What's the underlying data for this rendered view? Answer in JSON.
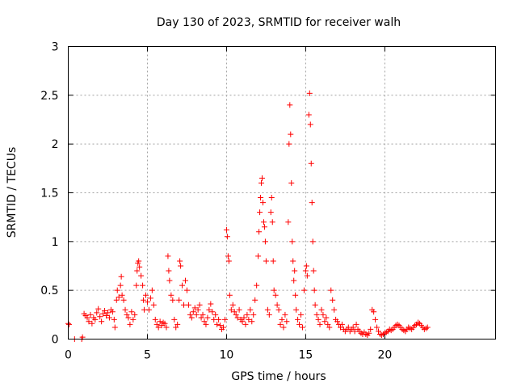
{
  "chart_data": {
    "type": "scatter",
    "title": "Day 130 of 2023, SRMTID for receiver walh",
    "xlabel": "GPS time / hours",
    "ylabel": "SRMTID / TECUs",
    "xlim": [
      0,
      27
    ],
    "ylim": [
      0,
      3
    ],
    "xticks": [
      0,
      5,
      10,
      15,
      20
    ],
    "xtick_labels": [
      "0",
      "5",
      "10",
      "15",
      "20"
    ],
    "yticks": [
      0,
      0.5,
      1,
      1.5,
      2,
      2.5,
      3
    ],
    "ytick_labels": [
      "0",
      "0.5",
      "1",
      "1.5",
      "2",
      "2.5",
      "3"
    ],
    "grid": true,
    "marker": "plus",
    "color": "#ff0000",
    "series": [
      {
        "name": "SRMTID",
        "points": [
          [
            0.0,
            0.16
          ],
          [
            0.05,
            0.15
          ],
          [
            0.4,
            0.0
          ],
          [
            0.85,
            0.0
          ],
          [
            0.9,
            0.02
          ],
          [
            1.0,
            0.26
          ],
          [
            1.1,
            0.24
          ],
          [
            1.2,
            0.22
          ],
          [
            1.3,
            0.18
          ],
          [
            1.4,
            0.25
          ],
          [
            1.5,
            0.16
          ],
          [
            1.6,
            0.22
          ],
          [
            1.7,
            0.2
          ],
          [
            1.8,
            0.27
          ],
          [
            1.9,
            0.31
          ],
          [
            2.0,
            0.23
          ],
          [
            2.1,
            0.18
          ],
          [
            2.2,
            0.26
          ],
          [
            2.3,
            0.29
          ],
          [
            2.4,
            0.24
          ],
          [
            2.5,
            0.27
          ],
          [
            2.6,
            0.22
          ],
          [
            2.7,
            0.3
          ],
          [
            2.8,
            0.28
          ],
          [
            2.9,
            0.2
          ],
          [
            2.95,
            0.12
          ],
          [
            3.05,
            0.4
          ],
          [
            3.1,
            0.5
          ],
          [
            3.2,
            0.43
          ],
          [
            3.3,
            0.55
          ],
          [
            3.35,
            0.64
          ],
          [
            3.4,
            0.45
          ],
          [
            3.5,
            0.4
          ],
          [
            3.6,
            0.3
          ],
          [
            3.7,
            0.25
          ],
          [
            3.8,
            0.22
          ],
          [
            3.9,
            0.15
          ],
          [
            4.0,
            0.28
          ],
          [
            4.1,
            0.2
          ],
          [
            4.2,
            0.25
          ],
          [
            4.3,
            0.55
          ],
          [
            4.35,
            0.7
          ],
          [
            4.4,
            0.78
          ],
          [
            4.45,
            0.8
          ],
          [
            4.5,
            0.74
          ],
          [
            4.6,
            0.65
          ],
          [
            4.7,
            0.55
          ],
          [
            4.75,
            0.4
          ],
          [
            4.8,
            0.3
          ],
          [
            4.9,
            0.45
          ],
          [
            5.0,
            0.38
          ],
          [
            5.1,
            0.3
          ],
          [
            5.2,
            0.42
          ],
          [
            5.3,
            0.5
          ],
          [
            5.4,
            0.35
          ],
          [
            5.5,
            0.2
          ],
          [
            5.6,
            0.15
          ],
          [
            5.7,
            0.12
          ],
          [
            5.8,
            0.18
          ],
          [
            5.9,
            0.14
          ],
          [
            6.0,
            0.17
          ],
          [
            6.1,
            0.16
          ],
          [
            6.2,
            0.12
          ],
          [
            6.3,
            0.85
          ],
          [
            6.35,
            0.7
          ],
          [
            6.4,
            0.6
          ],
          [
            6.5,
            0.45
          ],
          [
            6.6,
            0.4
          ],
          [
            6.7,
            0.2
          ],
          [
            6.8,
            0.12
          ],
          [
            6.9,
            0.15
          ],
          [
            7.0,
            0.4
          ],
          [
            7.05,
            0.8
          ],
          [
            7.1,
            0.75
          ],
          [
            7.2,
            0.55
          ],
          [
            7.3,
            0.35
          ],
          [
            7.4,
            0.6
          ],
          [
            7.5,
            0.5
          ],
          [
            7.6,
            0.35
          ],
          [
            7.7,
            0.25
          ],
          [
            7.8,
            0.22
          ],
          [
            7.9,
            0.28
          ],
          [
            8.0,
            0.32
          ],
          [
            8.1,
            0.25
          ],
          [
            8.2,
            0.3
          ],
          [
            8.3,
            0.35
          ],
          [
            8.4,
            0.22
          ],
          [
            8.5,
            0.25
          ],
          [
            8.6,
            0.18
          ],
          [
            8.7,
            0.15
          ],
          [
            8.8,
            0.22
          ],
          [
            8.9,
            0.3
          ],
          [
            9.0,
            0.36
          ],
          [
            9.1,
            0.28
          ],
          [
            9.2,
            0.2
          ],
          [
            9.3,
            0.25
          ],
          [
            9.4,
            0.15
          ],
          [
            9.5,
            0.2
          ],
          [
            9.6,
            0.14
          ],
          [
            9.7,
            0.1
          ],
          [
            9.8,
            0.12
          ],
          [
            9.9,
            0.2
          ],
          [
            10.0,
            1.12
          ],
          [
            10.05,
            1.05
          ],
          [
            10.1,
            0.85
          ],
          [
            10.15,
            0.8
          ],
          [
            10.2,
            0.45
          ],
          [
            10.3,
            0.3
          ],
          [
            10.4,
            0.35
          ],
          [
            10.5,
            0.28
          ],
          [
            10.6,
            0.25
          ],
          [
            10.7,
            0.22
          ],
          [
            10.8,
            0.3
          ],
          [
            10.9,
            0.2
          ],
          [
            11.0,
            0.18
          ],
          [
            11.1,
            0.22
          ],
          [
            11.2,
            0.15
          ],
          [
            11.3,
            0.25
          ],
          [
            11.4,
            0.2
          ],
          [
            11.5,
            0.3
          ],
          [
            11.6,
            0.18
          ],
          [
            11.7,
            0.25
          ],
          [
            11.8,
            0.4
          ],
          [
            11.9,
            0.55
          ],
          [
            12.0,
            0.85
          ],
          [
            12.05,
            1.1
          ],
          [
            12.1,
            1.3
          ],
          [
            12.15,
            1.45
          ],
          [
            12.2,
            1.6
          ],
          [
            12.25,
            1.65
          ],
          [
            12.3,
            1.4
          ],
          [
            12.35,
            1.2
          ],
          [
            12.4,
            1.15
          ],
          [
            12.45,
            1.0
          ],
          [
            12.5,
            0.8
          ],
          [
            12.6,
            0.3
          ],
          [
            12.7,
            0.25
          ],
          [
            12.8,
            1.3
          ],
          [
            12.85,
            1.45
          ],
          [
            12.9,
            1.2
          ],
          [
            12.95,
            0.8
          ],
          [
            13.0,
            0.5
          ],
          [
            13.1,
            0.45
          ],
          [
            13.2,
            0.35
          ],
          [
            13.3,
            0.3
          ],
          [
            13.4,
            0.15
          ],
          [
            13.5,
            0.2
          ],
          [
            13.6,
            0.12
          ],
          [
            13.7,
            0.25
          ],
          [
            13.8,
            0.18
          ],
          [
            13.9,
            1.2
          ],
          [
            13.95,
            2.0
          ],
          [
            14.0,
            2.4
          ],
          [
            14.05,
            2.1
          ],
          [
            14.1,
            1.6
          ],
          [
            14.15,
            1.0
          ],
          [
            14.2,
            0.8
          ],
          [
            14.25,
            0.6
          ],
          [
            14.3,
            0.7
          ],
          [
            14.35,
            0.45
          ],
          [
            14.4,
            0.3
          ],
          [
            14.5,
            0.2
          ],
          [
            14.6,
            0.15
          ],
          [
            14.7,
            0.25
          ],
          [
            14.8,
            0.12
          ],
          [
            14.9,
            0.5
          ],
          [
            15.0,
            0.7
          ],
          [
            15.05,
            0.75
          ],
          [
            15.1,
            0.65
          ],
          [
            15.2,
            2.3
          ],
          [
            15.25,
            2.52
          ],
          [
            15.3,
            2.2
          ],
          [
            15.35,
            1.8
          ],
          [
            15.4,
            1.4
          ],
          [
            15.45,
            1.0
          ],
          [
            15.5,
            0.7
          ],
          [
            15.55,
            0.5
          ],
          [
            15.6,
            0.35
          ],
          [
            15.7,
            0.25
          ],
          [
            15.8,
            0.2
          ],
          [
            15.9,
            0.15
          ],
          [
            16.0,
            0.3
          ],
          [
            16.1,
            0.25
          ],
          [
            16.2,
            0.18
          ],
          [
            16.3,
            0.22
          ],
          [
            16.4,
            0.15
          ],
          [
            16.5,
            0.12
          ],
          [
            16.6,
            0.5
          ],
          [
            16.7,
            0.4
          ],
          [
            16.8,
            0.3
          ],
          [
            16.9,
            0.2
          ],
          [
            17.0,
            0.18
          ],
          [
            17.1,
            0.15
          ],
          [
            17.2,
            0.12
          ],
          [
            17.3,
            0.15
          ],
          [
            17.4,
            0.1
          ],
          [
            17.5,
            0.08
          ],
          [
            17.6,
            0.1
          ],
          [
            17.7,
            0.12
          ],
          [
            17.8,
            0.08
          ],
          [
            17.9,
            0.1
          ],
          [
            18.0,
            0.12
          ],
          [
            18.1,
            0.08
          ],
          [
            18.2,
            0.15
          ],
          [
            18.3,
            0.1
          ],
          [
            18.4,
            0.08
          ],
          [
            18.5,
            0.06
          ],
          [
            18.6,
            0.05
          ],
          [
            18.7,
            0.07
          ],
          [
            18.8,
            0.05
          ],
          [
            18.9,
            0.04
          ],
          [
            19.0,
            0.06
          ],
          [
            19.1,
            0.1
          ],
          [
            19.2,
            0.3
          ],
          [
            19.3,
            0.28
          ],
          [
            19.4,
            0.2
          ],
          [
            19.5,
            0.12
          ],
          [
            19.6,
            0.08
          ],
          [
            19.7,
            0.05
          ],
          [
            19.8,
            0.04
          ],
          [
            19.9,
            0.05
          ],
          [
            20.0,
            0.06
          ],
          [
            20.1,
            0.07
          ],
          [
            20.2,
            0.08
          ],
          [
            20.3,
            0.1
          ],
          [
            20.4,
            0.09
          ],
          [
            20.5,
            0.1
          ],
          [
            20.6,
            0.12
          ],
          [
            20.7,
            0.14
          ],
          [
            20.8,
            0.15
          ],
          [
            20.9,
            0.14
          ],
          [
            21.0,
            0.12
          ],
          [
            21.1,
            0.1
          ],
          [
            21.2,
            0.09
          ],
          [
            21.3,
            0.08
          ],
          [
            21.4,
            0.1
          ],
          [
            21.5,
            0.12
          ],
          [
            21.6,
            0.11
          ],
          [
            21.7,
            0.1
          ],
          [
            21.8,
            0.12
          ],
          [
            21.9,
            0.14
          ],
          [
            22.0,
            0.15
          ],
          [
            22.1,
            0.17
          ],
          [
            22.2,
            0.16
          ],
          [
            22.3,
            0.14
          ],
          [
            22.4,
            0.12
          ],
          [
            22.5,
            0.1
          ],
          [
            22.6,
            0.11
          ],
          [
            22.7,
            0.12
          ]
        ]
      }
    ]
  }
}
